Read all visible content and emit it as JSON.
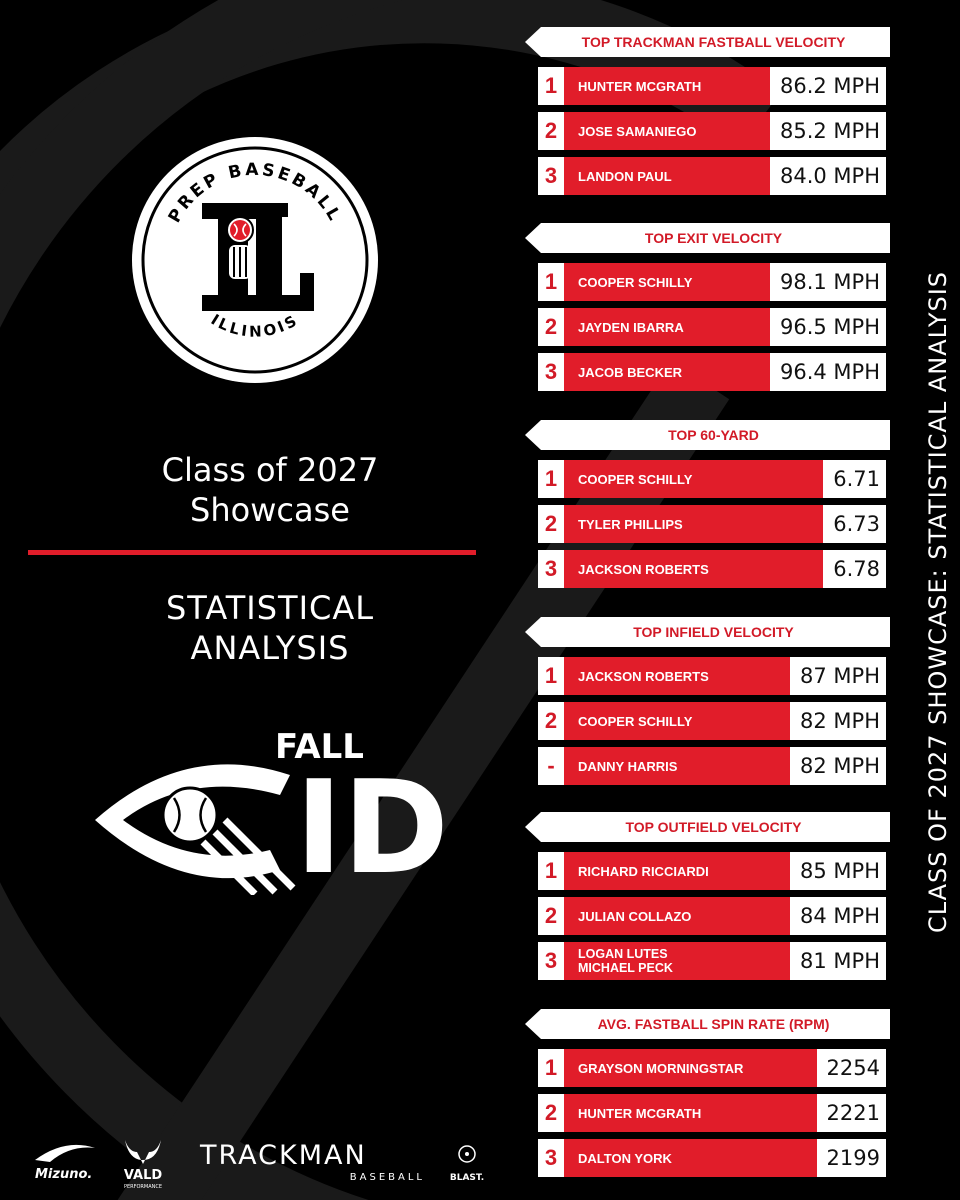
{
  "logo": {
    "arc_top": "PREP BASEBALL",
    "arc_bottom": "ILLINOIS",
    "monogram": "IL"
  },
  "event": {
    "line1": "Class of 2027",
    "line2": "Showcase",
    "analysis1": "STATISTICAL",
    "analysis2": "ANALYSIS"
  },
  "fall_id": {
    "fall": "FALL",
    "id": "ID"
  },
  "sponsors": {
    "mizuno": "Mizuno.",
    "vald": "VALD",
    "vald_sub": "PERFORMANCE",
    "trackman": "TRACKMAN",
    "trackman_sub": "BASEBALL",
    "blast": "BLAST."
  },
  "vertical_title": "CLASS OF 2027 SHOWCASE: STATISTICAL ANALYSIS",
  "colors": {
    "accent": "#e11d2a",
    "background": "#000000"
  },
  "sections": [
    {
      "title": "TOP TRACKMAN FASTBALL VELOCITY",
      "rows": [
        {
          "rank": "1",
          "name": "HUNTER MCGRATH",
          "value": "86.2 MPH"
        },
        {
          "rank": "2",
          "name": "JOSE SAMANIEGO",
          "value": "85.2 MPH"
        },
        {
          "rank": "3",
          "name": "LANDON PAUL",
          "value": "84.0 MPH"
        }
      ]
    },
    {
      "title": "TOP EXIT VELOCITY",
      "rows": [
        {
          "rank": "1",
          "name": "COOPER SCHILLY",
          "value": "98.1 MPH"
        },
        {
          "rank": "2",
          "name": "JAYDEN IBARRA",
          "value": "96.5 MPH"
        },
        {
          "rank": "3",
          "name": "JACOB BECKER",
          "value": "96.4 MPH"
        }
      ]
    },
    {
      "title": "TOP 60-YARD",
      "rows": [
        {
          "rank": "1",
          "name": "COOPER SCHILLY",
          "value": "6.71"
        },
        {
          "rank": "2",
          "name": "TYLER PHILLIPS",
          "value": "6.73"
        },
        {
          "rank": "3",
          "name": "JACKSON ROBERTS",
          "value": "6.78"
        }
      ]
    },
    {
      "title": "TOP INFIELD VELOCITY",
      "rows": [
        {
          "rank": "1",
          "name": "JACKSON ROBERTS",
          "value": "87 MPH"
        },
        {
          "rank": "2",
          "name": "COOPER SCHILLY",
          "value": "82 MPH"
        },
        {
          "rank": "-",
          "name": "DANNY HARRIS",
          "value": "82 MPH"
        }
      ]
    },
    {
      "title": "TOP OUTFIELD VELOCITY",
      "rows": [
        {
          "rank": "1",
          "name": "RICHARD RICCIARDI",
          "value": "85 MPH"
        },
        {
          "rank": "2",
          "name": "JULIAN COLLAZO",
          "value": "84 MPH"
        },
        {
          "rank": "3",
          "name": "LOGAN LUTES",
          "name2": "MICHAEL PECK",
          "value": "81 MPH"
        }
      ]
    },
    {
      "title": "AVG. FASTBALL SPIN RATE (RPM)",
      "rows": [
        {
          "rank": "1",
          "name": "GRAYSON MORNINGSTAR",
          "value": "2254"
        },
        {
          "rank": "2",
          "name": "HUNTER MCGRATH",
          "value": "2221"
        },
        {
          "rank": "3",
          "name": "DALTON YORK",
          "value": "2199"
        }
      ]
    }
  ]
}
